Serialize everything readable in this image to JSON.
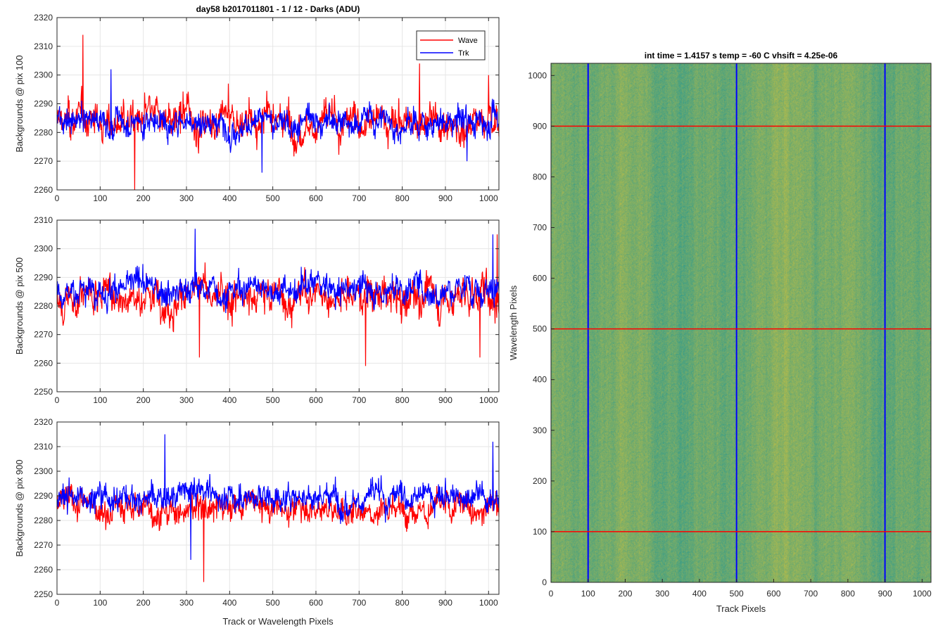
{
  "figure_title": "day58 b2017011801 - 1 / 12 - Darks (ADU)",
  "shared_xlabel": "Track or Wavelength Pixels",
  "legend": {
    "position": "top-right",
    "entries": [
      "Wave",
      "Trk"
    ]
  },
  "colors": {
    "wave": "#ff0000",
    "trk": "#0000ff",
    "grid": "#e6e6e6",
    "axis": "#262626"
  },
  "chart_data": [
    {
      "type": "line",
      "ylabel": "Backgrounds @ pix 100",
      "xlim": [
        0,
        1024
      ],
      "ylim": [
        2260,
        2320
      ],
      "grid": true,
      "xticks": [
        0,
        100,
        200,
        300,
        400,
        500,
        600,
        700,
        800,
        900,
        1000
      ],
      "yticks": [
        2260,
        2270,
        2280,
        2290,
        2300,
        2310,
        2320
      ],
      "series": [
        {
          "name": "Wave",
          "color": "#ff0000",
          "mean": 2284,
          "spread": 6.5,
          "features": [
            [
              60,
              2314
            ],
            [
              180,
              2260
            ],
            [
              840,
              2304
            ],
            [
              1000,
              2300
            ]
          ]
        },
        {
          "name": "Trk",
          "color": "#0000ff",
          "mean": 2284,
          "spread": 5,
          "features": [
            [
              125,
              2302
            ],
            [
              475,
              2266
            ],
            [
              950,
              2270
            ]
          ]
        }
      ]
    },
    {
      "type": "line",
      "ylabel": "Backgrounds @ pix 500",
      "xlim": [
        0,
        1024
      ],
      "ylim": [
        2250,
        2310
      ],
      "grid": true,
      "xticks": [
        0,
        100,
        200,
        300,
        400,
        500,
        600,
        700,
        800,
        900,
        1000
      ],
      "yticks": [
        2250,
        2260,
        2270,
        2280,
        2290,
        2300,
        2310
      ],
      "series": [
        {
          "name": "Wave",
          "color": "#ff0000",
          "mean": 2284,
          "spread": 6.5,
          "features": [
            [
              330,
              2262
            ],
            [
              715,
              2259
            ],
            [
              980,
              2262
            ],
            [
              1020,
              2305
            ]
          ]
        },
        {
          "name": "Trk",
          "color": "#0000ff",
          "mean": 2286,
          "spread": 5,
          "features": [
            [
              320,
              2307
            ],
            [
              1010,
              2305
            ]
          ]
        }
      ]
    },
    {
      "type": "line",
      "ylabel": "Backgrounds @ pix 900",
      "xlim": [
        0,
        1024
      ],
      "ylim": [
        2250,
        2320
      ],
      "grid": true,
      "xticks": [
        0,
        100,
        200,
        300,
        400,
        500,
        600,
        700,
        800,
        900,
        1000
      ],
      "yticks": [
        2250,
        2260,
        2270,
        2280,
        2290,
        2300,
        2310,
        2320
      ],
      "series": [
        {
          "name": "Wave",
          "color": "#ff0000",
          "mean": 2285,
          "spread": 6,
          "features": [
            [
              340,
              2255
            ]
          ]
        },
        {
          "name": "Trk",
          "color": "#0000ff",
          "mean": 2290,
          "spread": 6,
          "features": [
            [
              250,
              2315
            ],
            [
              1010,
              2312
            ],
            [
              310,
              2264
            ]
          ]
        }
      ]
    },
    {
      "type": "heatmap",
      "title": "int time = 1.4157 s    temp = -60 C    vhsift = 4.25e-06",
      "xlabel": "Track Pixels",
      "ylabel": "Wavelength Pixels",
      "xlim": [
        0,
        1024
      ],
      "ylim": [
        0,
        1024
      ],
      "xticks": [
        0,
        100,
        200,
        300,
        400,
        500,
        600,
        700,
        800,
        900,
        1000
      ],
      "yticks": [
        0,
        100,
        200,
        300,
        400,
        500,
        600,
        700,
        800,
        900,
        1000
      ],
      "colormap": "parula",
      "vertical_lines": {
        "x": [
          100,
          500,
          900
        ],
        "color": "#0000ff"
      },
      "horizontal_lines": {
        "y": [
          100,
          500,
          900
        ],
        "color": "#ff0000"
      }
    }
  ]
}
